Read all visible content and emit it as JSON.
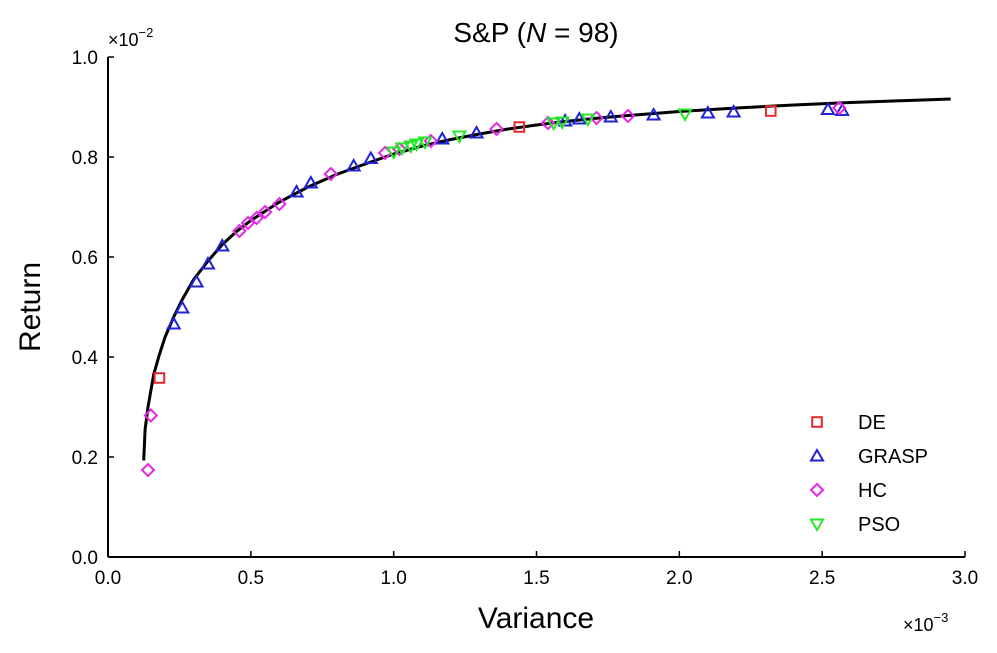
{
  "chart_data": {
    "type": "scatter",
    "title_prefix": "S&P (",
    "title_var": "N",
    "title_suffix": " = 98)",
    "xlabel": "Variance",
    "ylabel": "Return",
    "x_multiplier_base": "×10",
    "x_multiplier_exp": "−3",
    "y_multiplier_base": "×10",
    "y_multiplier_exp": "−2",
    "xlim": [
      0,
      3.0
    ],
    "ylim": [
      0,
      1.0
    ],
    "x_ticks": [
      0.0,
      0.5,
      1.0,
      1.5,
      2.0,
      2.5,
      3.0
    ],
    "x_tick_labels": [
      "0.0",
      "0.5",
      "1.0",
      "1.5",
      "2.0",
      "2.5",
      "3.0"
    ],
    "y_ticks": [
      0.0,
      0.2,
      0.4,
      0.6,
      0.8,
      1.0
    ],
    "y_tick_labels": [
      "0.0",
      "0.2",
      "0.4",
      "0.6",
      "0.8",
      "1.0"
    ],
    "grid": false,
    "legend_position": "bottom-right",
    "frontier": {
      "x": [
        0.125,
        0.13,
        0.14,
        0.16,
        0.18,
        0.2,
        0.23,
        0.26,
        0.3,
        0.35,
        0.4,
        0.45,
        0.5,
        0.6,
        0.7,
        0.8,
        0.9,
        1.0,
        1.1,
        1.2,
        1.3,
        1.4,
        1.5,
        1.6,
        1.7,
        1.8,
        2.0,
        2.2,
        2.4,
        2.6,
        2.8,
        2.95
      ],
      "y": [
        0.193,
        0.255,
        0.3,
        0.365,
        0.405,
        0.44,
        0.48,
        0.515,
        0.555,
        0.592,
        0.625,
        0.651,
        0.673,
        0.71,
        0.74,
        0.765,
        0.786,
        0.806,
        0.822,
        0.835,
        0.846,
        0.856,
        0.864,
        0.871,
        0.877,
        0.882,
        0.891,
        0.898,
        0.904,
        0.909,
        0.913,
        0.916
      ]
    },
    "series": [
      {
        "name": "DE",
        "marker": "square",
        "color": "#e8292b",
        "x": [
          0.18,
          1.44,
          2.32
        ],
        "y": [
          0.358,
          0.86,
          0.892
        ]
      },
      {
        "name": "GRASP",
        "marker": "triangle-up",
        "color": "#1f22d6",
        "x": [
          0.23,
          0.26,
          0.31,
          0.35,
          0.4,
          0.66,
          0.71,
          0.86,
          0.92,
          1.17,
          1.29,
          1.6,
          1.65,
          1.76,
          1.91,
          2.1,
          2.19,
          2.52,
          2.57
        ],
        "y": [
          0.466,
          0.498,
          0.55,
          0.586,
          0.622,
          0.73,
          0.748,
          0.782,
          0.797,
          0.836,
          0.848,
          0.872,
          0.876,
          0.88,
          0.884,
          0.888,
          0.89,
          0.895,
          0.893
        ]
      },
      {
        "name": "HC",
        "marker": "diamond",
        "color": "#e629e6",
        "x": [
          0.14,
          0.15,
          0.46,
          0.49,
          0.52,
          0.55,
          0.6,
          0.78,
          0.97,
          1.02,
          1.13,
          1.36,
          1.54,
          1.71,
          1.82,
          2.56
        ],
        "y": [
          0.174,
          0.283,
          0.652,
          0.668,
          0.678,
          0.69,
          0.706,
          0.766,
          0.808,
          0.816,
          0.832,
          0.856,
          0.868,
          0.878,
          0.882,
          0.898
        ]
      },
      {
        "name": "PSO",
        "marker": "triangle-down",
        "color": "#28e628",
        "x": [
          1.0,
          1.03,
          1.06,
          1.08,
          1.11,
          1.23,
          1.56,
          1.59,
          1.68,
          2.02
        ],
        "y": [
          0.81,
          0.818,
          0.822,
          0.826,
          0.83,
          0.842,
          0.868,
          0.87,
          0.876,
          0.886
        ]
      }
    ]
  }
}
